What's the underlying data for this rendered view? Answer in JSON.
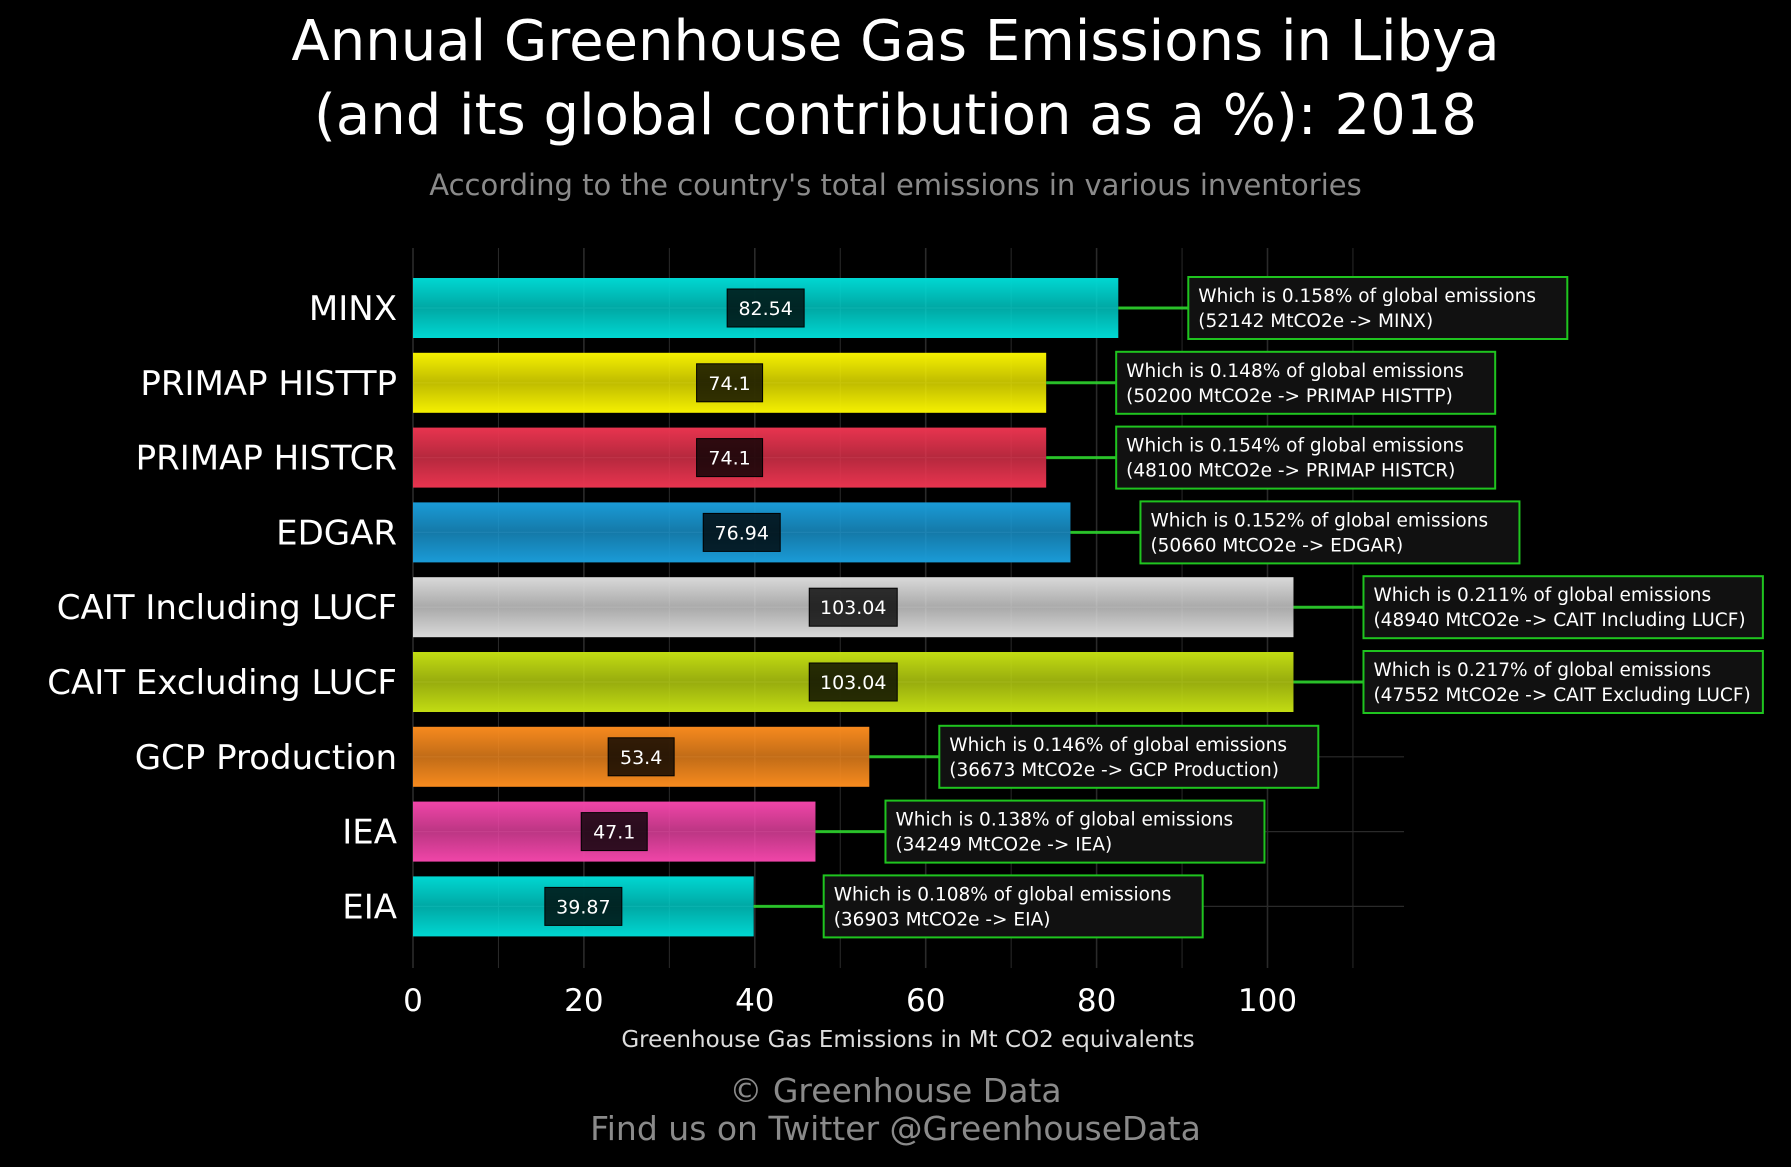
{
  "chart_data": {
    "type": "bar",
    "orientation": "horizontal",
    "title_line1": "Annual Greenhouse Gas Emissions in Libya",
    "title_line2": "(and its global contribution as a %): 2018",
    "subtitle": "According to the country's total emissions in various inventories",
    "xlabel": "Greenhouse Gas Emissions in Mt CO2 equivalents",
    "xlim": [
      0,
      116
    ],
    "xticks": [
      0,
      20,
      40,
      60,
      80,
      100
    ],
    "grid": true,
    "bars": [
      {
        "label": "MINX",
        "value": 82.54,
        "value_label": "82.54",
        "color": "#00d7d2",
        "annotation_line1": "Which is 0.158% of global emissions",
        "annotation_line2": "(52142 MtCO2e -> MINX)"
      },
      {
        "label": "PRIMAP HISTTP",
        "value": 74.1,
        "value_label": "74.1",
        "color": "#f5f000",
        "annotation_line1": "Which is 0.148% of global emissions",
        "annotation_line2": "(50200 MtCO2e -> PRIMAP HISTTP)"
      },
      {
        "label": "PRIMAP HISTCR",
        "value": 74.1,
        "value_label": "74.1",
        "color": "#e8344f",
        "annotation_line1": "Which is 0.154% of global emissions",
        "annotation_line2": "(48100 MtCO2e -> PRIMAP HISTCR)"
      },
      {
        "label": "EDGAR",
        "value": 76.94,
        "value_label": "76.94",
        "color": "#1a9bd7",
        "annotation_line1": "Which is 0.152% of global emissions",
        "annotation_line2": "(50660 MtCO2e -> EDGAR)"
      },
      {
        "label": "CAIT Including LUCF",
        "value": 103.04,
        "value_label": "103.04",
        "color": "#d9d9d9",
        "annotation_line1": "Which is 0.211% of global emissions",
        "annotation_line2": "(48940 MtCO2e -> CAIT Including LUCF)"
      },
      {
        "label": "CAIT Excluding LUCF",
        "value": 103.04,
        "value_label": "103.04",
        "color": "#c2dc12",
        "annotation_line1": "Which is 0.217% of global emissions",
        "annotation_line2": "(47552 MtCO2e -> CAIT Excluding LUCF)"
      },
      {
        "label": "GCP Production",
        "value": 53.4,
        "value_label": "53.4",
        "color": "#f78a1e",
        "annotation_line1": "Which is 0.146% of global emissions",
        "annotation_line2": "(36673 MtCO2e -> GCP Production)"
      },
      {
        "label": "IEA",
        "value": 47.1,
        "value_label": "47.1",
        "color": "#f045a8",
        "annotation_line1": "Which is 0.138% of global emissions",
        "annotation_line2": "(34249 MtCO2e -> IEA)"
      },
      {
        "label": "EIA",
        "value": 39.87,
        "value_label": "39.87",
        "color": "#00d7d2",
        "annotation_line1": "Which is 0.108% of global emissions",
        "annotation_line2": "(36903 MtCO2e -> EIA)"
      }
    ],
    "colors": {
      "annotation_border": "#1fc41f",
      "annotation_bg": "#111111",
      "connector": "#2ee82e",
      "grid": "#2a2a2a"
    }
  },
  "credits": {
    "line1": "© Greenhouse Data",
    "line2": "Find us on Twitter @GreenhouseData"
  }
}
